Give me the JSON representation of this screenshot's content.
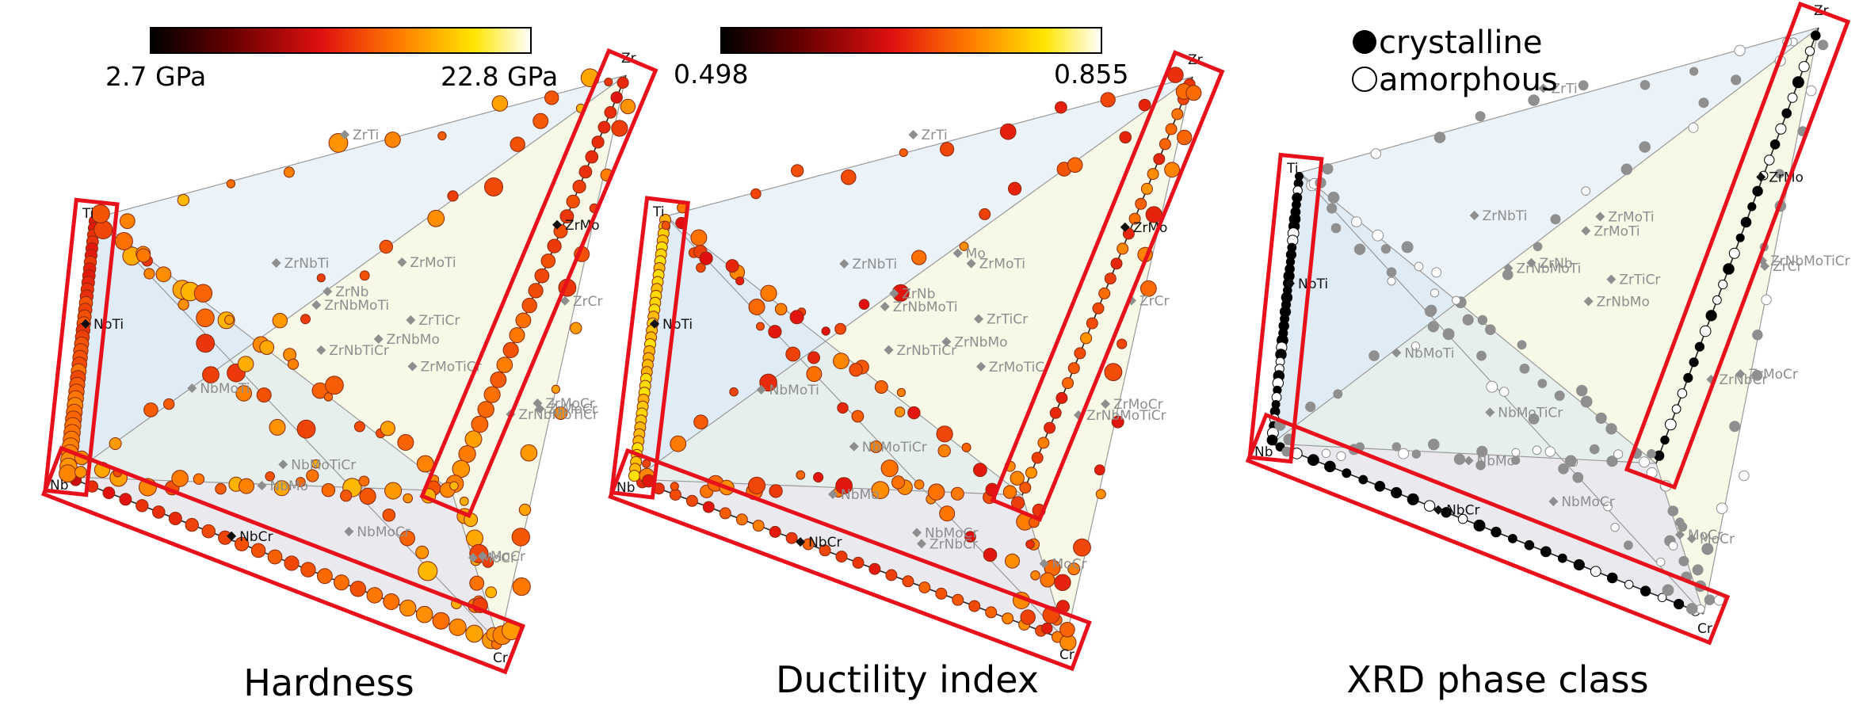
{
  "colors": {
    "hardness_scale": [
      "#000000",
      "#6b0000",
      "#e01010",
      "#ff7a00",
      "#ffe500",
      "#ffffff"
    ],
    "highlight_box": "#e8101a",
    "crystalline": "#000000",
    "amorphous": "#ffffff",
    "background_point": "#8f8f8f"
  },
  "chart_data": [
    {
      "type": "scatter",
      "title": "Hardness",
      "colorbar": {
        "min_label": "2.7 GPa",
        "max_label": "22.8 GPa",
        "min": 2.7,
        "max": 22.8,
        "cmap": "hot"
      },
      "vertices": [
        "Zr",
        "Ti",
        "Nb",
        "Cr"
      ],
      "vertex_labels": [
        "ZrTi",
        "ZrNbTi",
        "ZrMoTi",
        "ZrNb",
        "ZrNbMoTi",
        "ZrTiCr",
        "NbTi",
        "ZrNbTiCr",
        "ZrNbMo",
        "ZrMoTiCr",
        "ZrMo",
        "ZrCr",
        "NbMoTi",
        "ZrNbMoTiCr",
        "ZrMoCr",
        "ZrMoCr",
        "NbMoCr",
        "MoCr",
        "NbMoTiCr",
        "NbMo",
        "NbCr",
        "MoCr"
      ],
      "highlighted_edges": [
        "Ti-Nb",
        "Nb-Cr",
        "Zr-Mo"
      ]
    },
    {
      "type": "scatter",
      "title": "Ductility index",
      "colorbar": {
        "min_label": "0.498",
        "max_label": "0.855",
        "min": 0.498,
        "max": 0.855,
        "cmap": "hot"
      },
      "vertices": [
        "Zr",
        "Ti",
        "Nb",
        "Cr"
      ],
      "vertex_labels": [
        "ZrTi",
        "ZrNbTi",
        "ZrMoTi",
        "ZrNb",
        "ZrNbMoTi",
        "ZrTiCr",
        "NbTi",
        "ZrNbTiCr",
        "ZrNbMo",
        "ZrMoTiCr",
        "ZrMo",
        "ZrCr",
        "NbMoTi",
        "ZrNbMoTiCr",
        "ZrNbCr",
        "ZrMoCr",
        "NbMoCr",
        "NbMoTiCr",
        "NbMo",
        "NbCr",
        "MoCr",
        "Mo"
      ],
      "highlighted_edges": [
        "Ti-Nb",
        "Nb-Cr",
        "Zr-Mo"
      ]
    },
    {
      "type": "scatter",
      "title": "XRD phase class",
      "legend": [
        "crystalline",
        "amorphous"
      ],
      "vertices": [
        "Zr",
        "Ti",
        "Nb",
        "Cr"
      ],
      "vertex_labels": [
        "ZrTi",
        "ZrNb",
        "ZrNbTi",
        "ZrMoTi",
        "ZrNbMo",
        "ZrTiCr",
        "NbTi",
        "ZrMo",
        "ZrNbMoTi",
        "ZrMoTi",
        "ZrCr",
        "ZrNbMoTiCr",
        "NbMoTi",
        "ZrNbCr",
        "ZrMoCr",
        "MoCr",
        "NbMoCr",
        "NbMoTiCr",
        "NbMo",
        "NbCr",
        "MoCr"
      ],
      "highlighted_edges": [
        "Ti-Nb",
        "Nb-Cr",
        "Zr-Mo"
      ]
    }
  ]
}
